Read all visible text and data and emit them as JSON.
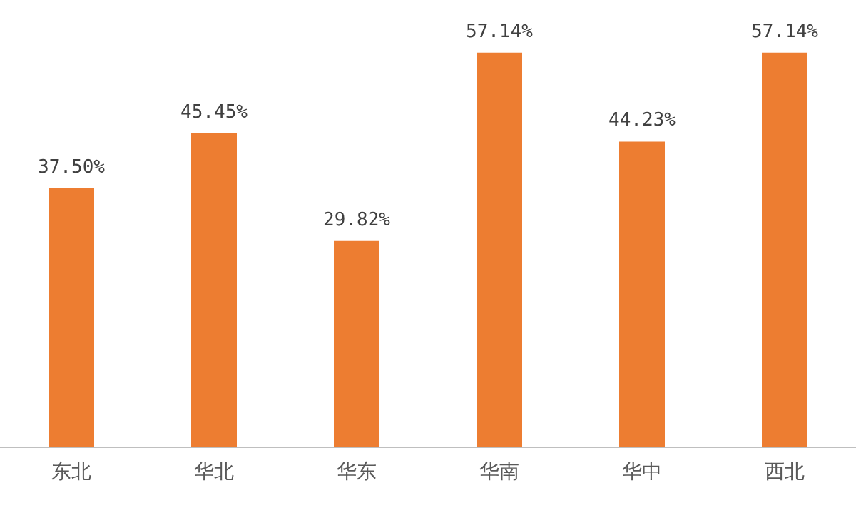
{
  "chart_data": {
    "type": "bar",
    "categories": [
      "东北",
      "华北",
      "华东",
      "华南",
      "华中",
      "西北"
    ],
    "values": [
      37.5,
      45.45,
      29.82,
      57.14,
      44.23,
      57.14
    ],
    "value_labels": [
      "37.50%",
      "45.45%",
      "29.82%",
      "57.14%",
      "44.23%",
      "57.14%"
    ],
    "color": "#ed7d31"
  }
}
